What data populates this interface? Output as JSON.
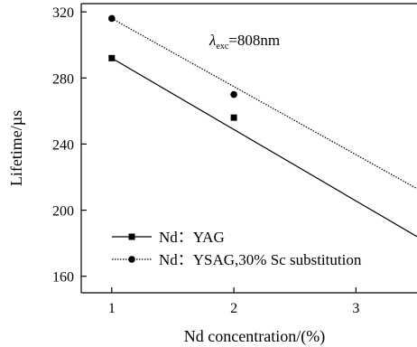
{
  "chart_data": {
    "type": "line",
    "xlabel": "Nd concentration/(%)",
    "ylabel": "Lifetime/µs",
    "xlim": [
      0.75,
      3.5
    ],
    "ylim": [
      150,
      325
    ],
    "x_ticks": [
      "1",
      "2",
      "3"
    ],
    "y_ticks": [
      "160",
      "200",
      "240",
      "280",
      "320"
    ],
    "annotation": {
      "symbol": "λ",
      "subscript": "exc",
      "text": "=808nm"
    },
    "legend_position": "bottom-left",
    "series": [
      {
        "name": "Nd：YAG",
        "marker": "square",
        "line_style": "solid",
        "points": [
          [
            1,
            292
          ],
          [
            2,
            256
          ]
        ],
        "fit": [
          [
            1,
            292
          ],
          [
            3.5,
            184
          ]
        ]
      },
      {
        "name": "Nd：YSAG,30% Sc substitution",
        "marker": "circle",
        "line_style": "dotted",
        "points": [
          [
            1,
            316
          ],
          [
            2,
            270
          ]
        ],
        "fit": [
          [
            1,
            316
          ],
          [
            3.5,
            213
          ]
        ]
      }
    ]
  }
}
